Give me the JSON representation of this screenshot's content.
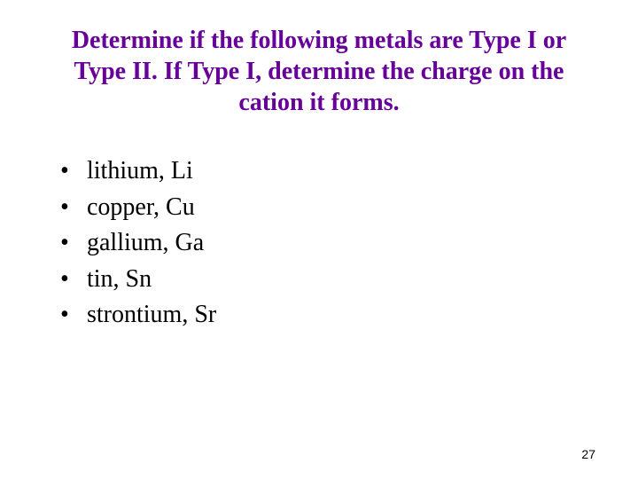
{
  "title": {
    "text": "Determine if the following metals are Type I or Type II.  If Type I, determine the charge on the cation it forms.",
    "color": "#660099",
    "fontsize": 28
  },
  "bullets": {
    "color": "#000000",
    "fontsize": 28,
    "items": [
      {
        "text": "lithium, Li"
      },
      {
        "text": "copper, Cu"
      },
      {
        "text": "gallium, Ga"
      },
      {
        "text": "tin, Sn"
      },
      {
        "text": "strontium, Sr"
      }
    ]
  },
  "page_number": {
    "value": "27",
    "color": "#000000"
  },
  "background_color": "#ffffff"
}
